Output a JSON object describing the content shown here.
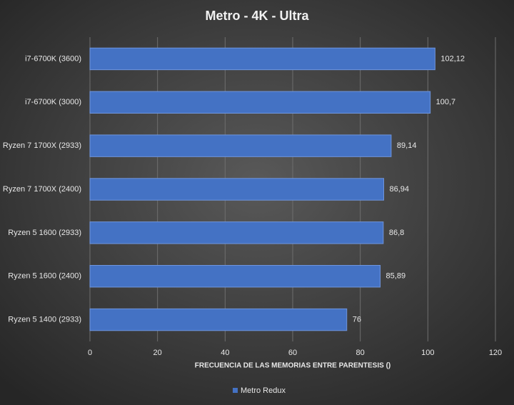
{
  "chart_data": {
    "type": "bar",
    "orientation": "horizontal",
    "title": "Metro  - 4K - Ultra",
    "x_label": "FRECUENCIA DE LAS MEMORIAS  ENTRE PARENTESIS ()",
    "categories": [
      "i7-6700K (3600)",
      "i7-6700K (3000)",
      "Ryzen 7 1700X (2933)",
      "Ryzen 7 1700X (2400)",
      "Ryzen 5 1600 (2933)",
      "Ryzen 5 1600 (2400)",
      "Ryzen 5 1400 (2933)"
    ],
    "series": [
      {
        "name": "Metro Redux",
        "color": "#4472c4",
        "values": [
          102.12,
          100.7,
          89.14,
          86.94,
          86.8,
          85.89,
          76
        ],
        "value_labels": [
          "102,12",
          "100,7",
          "89,14",
          "86,94",
          "86,8",
          "85,89",
          "76"
        ]
      }
    ],
    "xlim": [
      0,
      120
    ],
    "xticks": [
      0,
      20,
      40,
      60,
      80,
      100,
      120
    ],
    "grid": true,
    "legend": "bottom"
  }
}
